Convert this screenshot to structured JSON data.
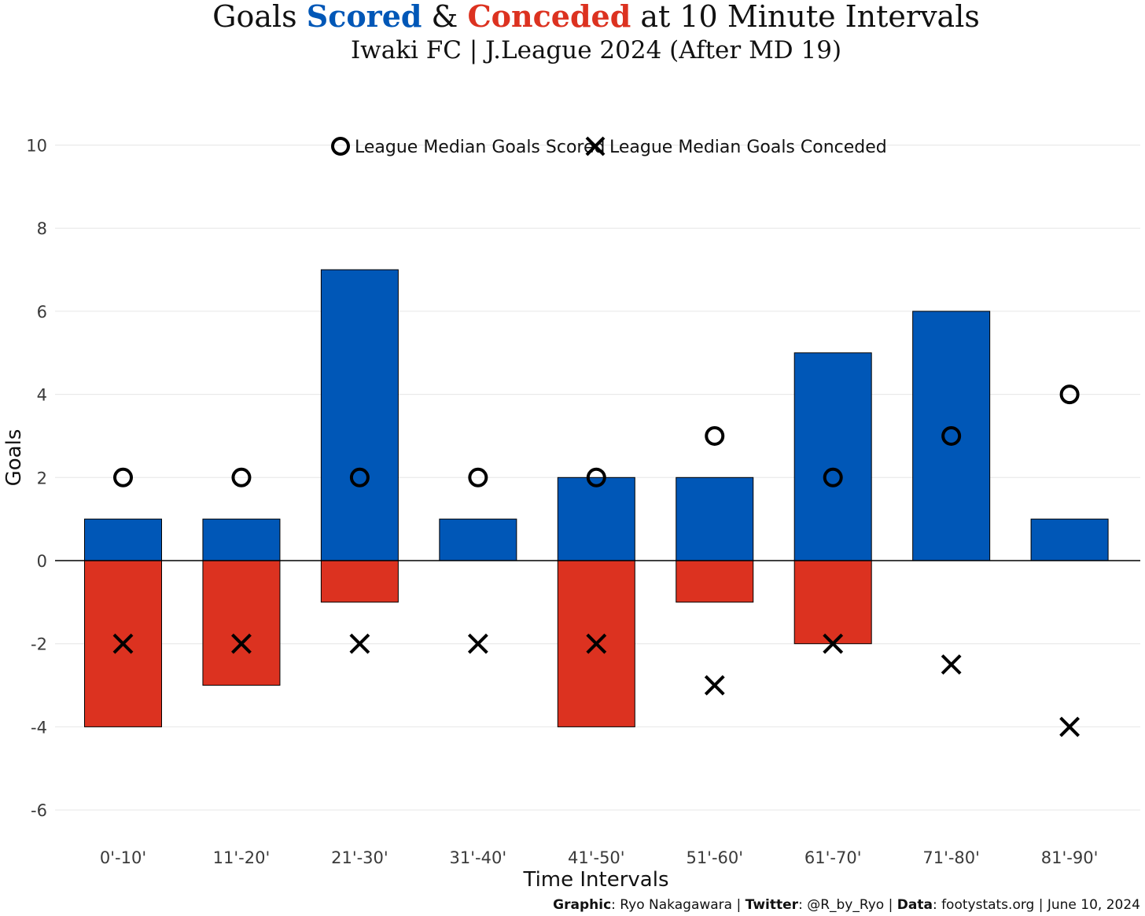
{
  "title": {
    "part1": "Goals ",
    "scored": "Scored",
    "amp": " & ",
    "conceded": "Conceded",
    "part2": " at 10 Minute Intervals"
  },
  "subtitle": "Iwaki FC | J.League 2024 (After MD 19)",
  "colors": {
    "scored": "#0057B7",
    "conceded": "#DC3220",
    "grid": "#e6e6e6",
    "marker": "#000000"
  },
  "legend": {
    "median_scored": "League Median Goals Scored",
    "median_conceded": "League Median Goals Conceded"
  },
  "caption": {
    "graphic_label": "Graphic",
    "graphic_value": ": Ryo Nakagawara | ",
    "twitter_label": "Twitter",
    "twitter_value": ": @R_by_Ryo | ",
    "data_label": "Data",
    "data_value": ": footystats.org | June 10, 2024"
  },
  "chart_data": {
    "type": "bar",
    "xlabel": "Time Intervals",
    "ylabel": "Goals",
    "ylim": [
      -6.7,
      10.3
    ],
    "yticks": [
      -6,
      -4,
      -2,
      0,
      2,
      4,
      6,
      8,
      10
    ],
    "grid": true,
    "legend_position": "top-center",
    "categories": [
      "0'-10'",
      "11'-20'",
      "21'-30'",
      "31'-40'",
      "41'-50'",
      "51'-60'",
      "61'-70'",
      "71'-80'",
      "81'-90'"
    ],
    "series": [
      {
        "name": "Scored",
        "values": [
          1,
          1,
          7,
          1,
          2,
          2,
          5,
          6,
          1
        ]
      },
      {
        "name": "Conceded",
        "values": [
          -4,
          -3,
          -1,
          0,
          -4,
          -1,
          -2,
          0,
          0
        ]
      },
      {
        "name": "League Median Goals Scored",
        "marker": "circle",
        "values": [
          2,
          2,
          2,
          2,
          2,
          3,
          2,
          3,
          4
        ]
      },
      {
        "name": "League Median Goals Conceded",
        "marker": "x",
        "values": [
          -2,
          -2,
          -2,
          -2,
          -2,
          -3,
          -2,
          -2.5,
          -4
        ]
      }
    ]
  }
}
